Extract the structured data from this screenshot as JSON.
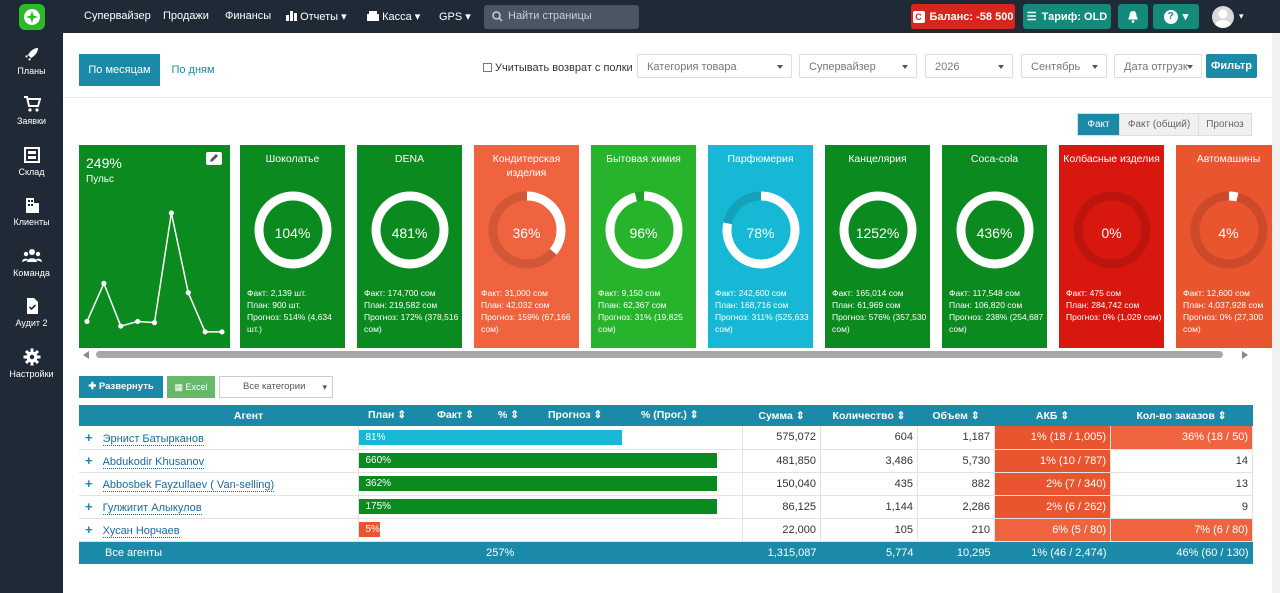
{
  "nav": {
    "items": [
      "Супервайзер",
      "Продажи",
      "Финансы",
      "Отчеты",
      "Касса",
      "GPS"
    ],
    "search_placeholder": "Найти страницы",
    "balance": "Баланс: -58 500",
    "tariff": "Тариф: OLD"
  },
  "sidebar": {
    "items": [
      {
        "label": "Планы",
        "icon": "rocket-icon"
      },
      {
        "label": "Заявки",
        "icon": "cart-icon"
      },
      {
        "label": "Склад",
        "icon": "warehouse-icon"
      },
      {
        "label": "Клиенты",
        "icon": "building-icon"
      },
      {
        "label": "Команда",
        "icon": "team-icon"
      },
      {
        "label": "Аудит 2",
        "icon": "audit-icon"
      },
      {
        "label": "Настройки",
        "icon": "gear-icon"
      }
    ]
  },
  "toolbar": {
    "tab_months": "По месяцам",
    "tab_days": "По дням",
    "return_label": "Учитывать возврат с полки",
    "category": "Категория товара",
    "supervisor": "Супервайзер",
    "year": "2026",
    "month": "Сентябрь",
    "date_type": "Дата отгрузк",
    "filter": "Фильтр"
  },
  "view_tabs": [
    "Факт",
    "Факт (общий)",
    "Прогноз"
  ],
  "pulse": {
    "value": "249%",
    "label": "Пульс",
    "points": [
      1,
      4.3,
      0.6,
      1,
      0.9,
      10.4,
      3.5,
      0.1,
      0.1
    ]
  },
  "cards": [
    {
      "title": "Шоколатье",
      "pct": "104%",
      "ratio": 1.04,
      "color": "#0b8a1f",
      "fact": "Факт: 2,139 шт.",
      "plan": "План: 900 шт.",
      "forecast": "Прогноз: 514% (4,634 шт.)"
    },
    {
      "title": "DENA",
      "pct": "481%",
      "ratio": 4.81,
      "color": "#0b8a1f",
      "fact": "Факт: 174,700 сом",
      "plan": "План: 219,582 сом",
      "forecast": "Прогноз: 172% (378,516 сом)"
    },
    {
      "title": "Кондитерская изделия",
      "pct": "36%",
      "ratio": 0.36,
      "color": "#f0633f",
      "fact": "Факт: 31,000 сом",
      "plan": "План: 42,032 сом",
      "forecast": "Прогноз: 159% (67,166 сом)"
    },
    {
      "title": "Бытовая химия",
      "pct": "96%",
      "ratio": 0.96,
      "color": "#27b32b",
      "fact": "Факт: 9,150 сом",
      "plan": "План: 62,367 сом",
      "forecast": "Прогноз: 31% (19,825 сом)"
    },
    {
      "title": "Парфюмерия",
      "pct": "78%",
      "ratio": 0.78,
      "color": "#17b8d6",
      "fact": "Факт: 242,600 сом",
      "plan": "План: 168,716 сом",
      "forecast": "Прогноз: 311% (525,633 сом)"
    },
    {
      "title": "Канцелярия",
      "pct": "1252%",
      "ratio": 12.52,
      "color": "#0b8a1f",
      "fact": "Факт: 165,014 сом",
      "plan": "План: 61,969 сом",
      "forecast": "Прогноз: 576% (357,530 сом)"
    },
    {
      "title": "Coca-cola",
      "pct": "436%",
      "ratio": 4.36,
      "color": "#0b8a1f",
      "fact": "Факт: 117,548 сом",
      "plan": "План: 106,820 сом",
      "forecast": "Прогноз: 238% (254,687 сом)"
    },
    {
      "title": "Колбасные изделия",
      "pct": "0%",
      "ratio": 0.0,
      "color": "#d8180f",
      "fact": "Факт: 475 сом",
      "plan": "План: 284,742 сом",
      "forecast": "Прогноз: 0% (1,029 сом)"
    },
    {
      "title": "Автомашины",
      "pct": "4%",
      "ratio": 0.04,
      "color": "#e9552f",
      "fact": "Факт: 12,600 сом",
      "plan": "План: 4,037,928 сом",
      "forecast": "Прогноз: 0% (27,300 сом)"
    }
  ],
  "table_toolbar": {
    "expand": "Развернуть все",
    "excel": "Excel",
    "categories": "Все категории"
  },
  "table": {
    "headers": [
      "Агент",
      "План",
      "Факт",
      "%",
      "Прогноз",
      "% (Прог.)",
      "Сумма",
      "Количество",
      "Объем",
      "АКБ",
      "Кол-во заказов"
    ],
    "rows": [
      {
        "agent": "Эрнист Батырканов",
        "pct": "81%",
        "ratio": 0.81,
        "bar_color": "#17b8d6",
        "sum": "575,072",
        "qty": "604",
        "vol": "1,187",
        "akb": "1% (18 / 1,005)",
        "akb_color": "#e9552f",
        "orders": "36% (18 / 50)",
        "orders_color": "#f0633f"
      },
      {
        "agent": "Abdukodir Khusanov",
        "pct": "660%",
        "ratio": 6.6,
        "bar_color": "#0b8a1f",
        "sum": "481,850",
        "qty": "3,486",
        "vol": "5,730",
        "akb": "1% (10 / 787)",
        "akb_color": "#e9552f",
        "orders": "14",
        "orders_color": ""
      },
      {
        "agent": "Abbosbek Fayzullaev ( Van-selling)",
        "pct": "362%",
        "ratio": 3.62,
        "bar_color": "#0b8a1f",
        "sum": "150,040",
        "qty": "435",
        "vol": "882",
        "akb": "2% (7 / 340)",
        "akb_color": "#e9552f",
        "orders": "13",
        "orders_color": ""
      },
      {
        "agent": "Гулжигит Алыкулов",
        "pct": "175%",
        "ratio": 1.75,
        "bar_color": "#0b8a1f",
        "sum": "86,125",
        "qty": "1,144",
        "vol": "2,286",
        "akb": "2% (6 / 262)",
        "akb_color": "#e9552f",
        "orders": "9",
        "orders_color": ""
      },
      {
        "agent": "Хусан Норчаев",
        "pct": "5%",
        "ratio": 0.05,
        "bar_color": "#e9552f",
        "sum": "22,000",
        "qty": "105",
        "vol": "210",
        "akb": "6% (5 / 80)",
        "akb_color": "#f0633f",
        "orders": "7% (6 / 80)",
        "orders_color": "#f0633f"
      }
    ],
    "footer": {
      "label": "Все агенты",
      "pct": "257%",
      "sum": "1,315,087",
      "qty": "5,774",
      "vol": "10,295",
      "akb": "1% (46 / 2,474)",
      "orders": "46% (60 / 130)"
    }
  }
}
